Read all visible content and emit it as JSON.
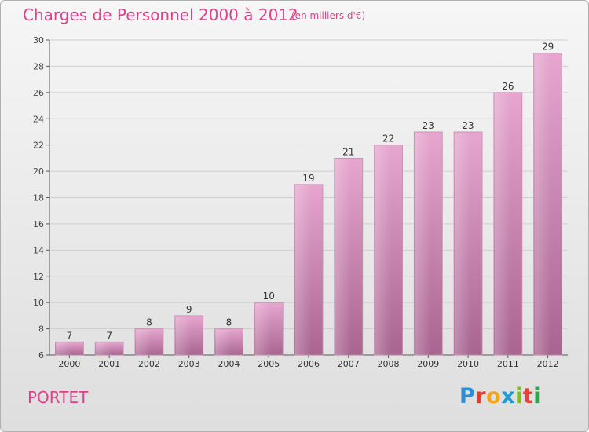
{
  "header": {
    "title": "Charges de Personnel 2000 à 2012",
    "subtitle": "(en milliers d'€)"
  },
  "footer": {
    "city": "PORTET",
    "logo_text": [
      "P",
      "r",
      "o",
      "x",
      "i",
      "t",
      "i"
    ]
  },
  "colors": {
    "title": "#e0408a",
    "bar_top": "#e6a6cf",
    "bar_bottom": "#a86590",
    "grid": "#cfcfcf"
  },
  "chart_data": {
    "type": "bar",
    "title": "Charges de Personnel 2000 à 2012",
    "subtitle": "(en milliers d'€)",
    "categories": [
      "2000",
      "2001",
      "2002",
      "2003",
      "2004",
      "2005",
      "2006",
      "2007",
      "2008",
      "2009",
      "2010",
      "2011",
      "2012"
    ],
    "values": [
      7,
      7,
      8,
      9,
      8,
      10,
      19,
      21,
      22,
      23,
      23,
      26,
      29
    ],
    "ylim": [
      6,
      30
    ],
    "yticks": [
      6,
      8,
      10,
      12,
      14,
      16,
      18,
      20,
      22,
      24,
      26,
      28,
      30
    ],
    "grid": true,
    "data_labels": true
  }
}
